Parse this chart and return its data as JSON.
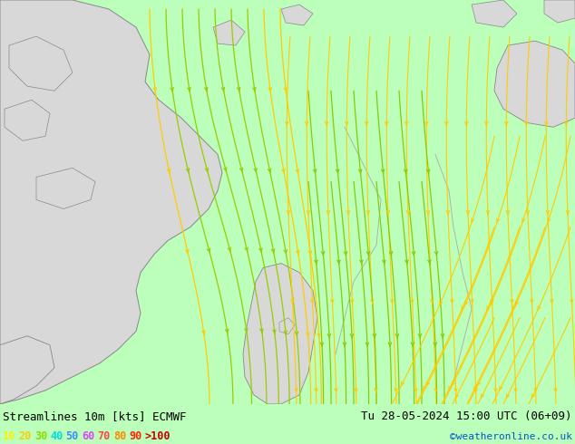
{
  "title_left": "Streamlines 10m [kts] ECMWF",
  "title_right": "Tu 28-05-2024 15:00 UTC (06+09)",
  "credit": "©weatheronline.co.uk",
  "bg_color": "#bbffbb",
  "land_color": "#d8d8d8",
  "coast_color": "#888888",
  "border_color": "#aaaaaa",
  "fig_width": 6.34,
  "fig_height": 4.9,
  "dpi": 100,
  "legend_labels": [
    "10",
    "20",
    "30",
    "40",
    "50",
    "60",
    "70",
    "80",
    "90",
    ">100"
  ],
  "legend_colors": [
    "#ffee00",
    "#ffcc00",
    "#88dd00",
    "#00dddd",
    "#4488ff",
    "#dd44ff",
    "#ff4444",
    "#ff8800",
    "#ff2200",
    "#cc0000"
  ],
  "text_color": "#000000",
  "credit_color": "#0055cc"
}
